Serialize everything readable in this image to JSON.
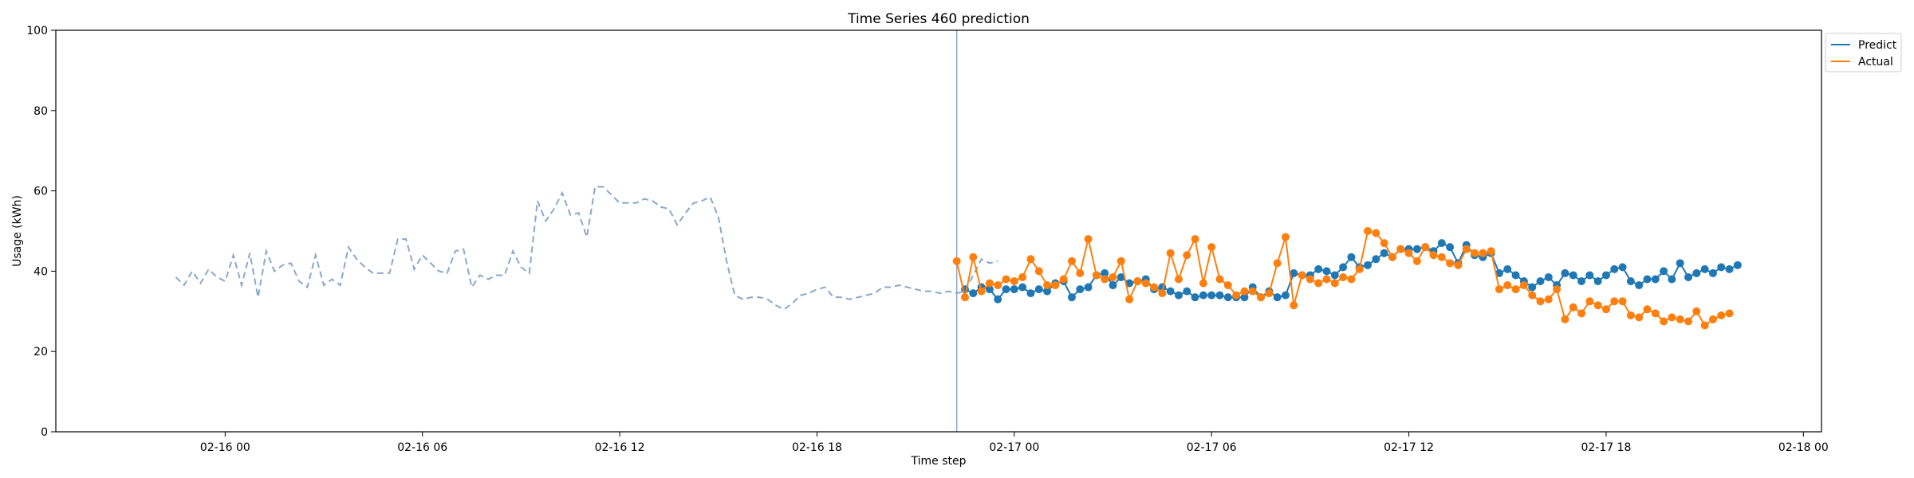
{
  "chart_data": {
    "type": "line",
    "title": "Time Series 460 prediction",
    "xlabel": "Time step",
    "ylabel": "Usage (kWh)",
    "ylim": [
      0,
      100
    ],
    "xlim": [
      "02-15 18:51",
      "02-18 00:33"
    ],
    "x_ticks": [
      {
        "t": "02-16 00:00",
        "label": "02-16 00"
      },
      {
        "t": "02-16 06:00",
        "label": "02-16 06"
      },
      {
        "t": "02-16 12:00",
        "label": "02-16 12"
      },
      {
        "t": "02-16 18:00",
        "label": "02-16 18"
      },
      {
        "t": "02-17 00:00",
        "label": "02-17 00"
      },
      {
        "t": "02-17 06:00",
        "label": "02-17 06"
      },
      {
        "t": "02-17 12:00",
        "label": "02-17 12"
      },
      {
        "t": "02-17 18:00",
        "label": "02-17 18"
      },
      {
        "t": "02-18 00:00",
        "label": "02-18 00"
      }
    ],
    "y_ticks": [
      0,
      20,
      40,
      60,
      80,
      100
    ],
    "grid": false,
    "legend": {
      "placement": "upper right outside",
      "entries": [
        "Predict",
        "Actual"
      ]
    },
    "colors": {
      "predict": "#1f77b4",
      "actual": "#ff7f0e",
      "history": "#8aa7c9",
      "divider": "#8aa7c9"
    },
    "divider_time": "02-16 22:15",
    "history": {
      "start": "02-15 22:30",
      "step_minutes": 15,
      "values": [
        38.5,
        36.5,
        40,
        37,
        40.5,
        38.5,
        37.5,
        44,
        36.5,
        44.5,
        33.5,
        45,
        40,
        41.5,
        42,
        37.5,
        36,
        44,
        36.5,
        38,
        36.5,
        46,
        43,
        41,
        39.5,
        39.5,
        39.5,
        48,
        48,
        40.5,
        44,
        42,
        40,
        39.5,
        45,
        45.5,
        36,
        39,
        38,
        39,
        39,
        45,
        41,
        39.5,
        57.5,
        52.5,
        55.5,
        59.5,
        54,
        54.5,
        48.5,
        61,
        61,
        59,
        57,
        57,
        57,
        58,
        57.5,
        56,
        55.5,
        51.5,
        54.5,
        57,
        57.5,
        58.5,
        53.5,
        42.5,
        34,
        33,
        33.5,
        33.5,
        33,
        31.5,
        30.5,
        32,
        34,
        34.5,
        35.5,
        36,
        33.5,
        33.5,
        33,
        33.5,
        34,
        34.5,
        36,
        36,
        36.5,
        36,
        35.5,
        35,
        35,
        34.5,
        35,
        34.5,
        35,
        39,
        43,
        42,
        42.5
      ]
    },
    "series": [
      {
        "name": "Predict",
        "start": "02-16 22:30",
        "step_minutes": 15,
        "values": [
          35.5,
          34.5,
          36,
          35.5,
          33,
          35.5,
          35.5,
          36,
          34.5,
          35.5,
          35,
          37,
          37.5,
          33.5,
          35.5,
          36,
          39,
          39.5,
          36.5,
          38.5,
          37,
          37.5,
          38,
          35.5,
          36,
          35,
          34,
          35,
          33.5,
          34,
          34,
          34,
          33.5,
          33.5,
          33.5,
          36,
          33.5,
          35,
          33.5,
          34,
          39.5,
          39,
          39,
          40.5,
          40,
          39,
          41,
          43.5,
          41,
          41.5,
          43,
          44.5,
          43.5,
          45.5,
          45.5,
          45.5,
          46,
          45,
          47,
          46,
          42,
          46.5,
          44,
          43.5,
          44.5,
          39.5,
          40.5,
          39,
          37.5,
          36,
          37.5,
          38.5,
          36.5,
          39.5,
          39,
          37.5,
          39,
          37.5,
          39,
          40.5,
          41,
          37.5,
          36.5,
          38,
          38,
          40,
          38,
          42,
          38.5,
          39.5,
          40.5,
          39.5,
          41,
          40.5,
          41.5
        ]
      },
      {
        "name": "Actual",
        "start": "02-16 22:15",
        "step_minutes": 15,
        "values": [
          42.5,
          33.5,
          43.5,
          35,
          37,
          36.5,
          38,
          37.5,
          38.5,
          43,
          40,
          36.5,
          36.5,
          38,
          42.5,
          39.5,
          48,
          39,
          38,
          38.5,
          42.5,
          33,
          37.5,
          37,
          36,
          34.5,
          44.5,
          38,
          44,
          48,
          37,
          46,
          38,
          36.5,
          34,
          35,
          35,
          33.5,
          34.5,
          42,
          48.5,
          31.5,
          39,
          38,
          37,
          38,
          37,
          38.5,
          38,
          40.5,
          50,
          49.5,
          47,
          43.5,
          45.5,
          44.5,
          42.5,
          46,
          44,
          43.5,
          42,
          41.5,
          45.5,
          44.5,
          44.5,
          45,
          35.5,
          36.5,
          35.5,
          36.5,
          34,
          32.5,
          33,
          35.5,
          28,
          31,
          29.5,
          32.5,
          31.5,
          30.5,
          32.5,
          32.5,
          29,
          28.5,
          30.5,
          29.5,
          27.5,
          28.5,
          28,
          27.5,
          30,
          26.5,
          28,
          29,
          29.5
        ]
      }
    ]
  }
}
